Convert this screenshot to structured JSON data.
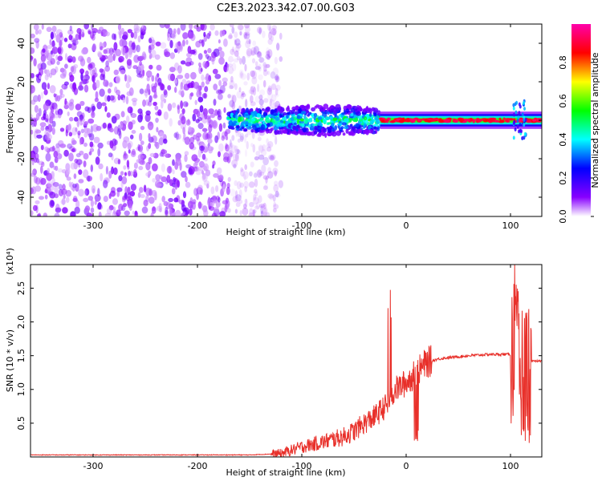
{
  "title": "C2E3.2023.342.07.00.G03",
  "chart_data": [
    {
      "type": "heatmap",
      "xlabel": "Height of straight line (km)",
      "ylabel": "Frequency (Hz)",
      "xlim": [
        -360,
        130
      ],
      "ylim": [
        -50,
        50
      ],
      "x_ticks": [
        -300,
        -200,
        -100,
        0,
        100
      ],
      "y_ticks": [
        -40,
        -20,
        0,
        20,
        40
      ],
      "x_tick_labels": [
        "-300",
        "-200",
        "-100",
        "0",
        "100"
      ],
      "y_tick_labels": [
        "-40",
        "-20",
        "0",
        "20",
        "40"
      ],
      "colorbar": {
        "label": "Normalized spectral amplitude",
        "range": [
          0,
          1
        ],
        "ticks": [
          0.0,
          0.2,
          0.4,
          0.6,
          0.8
        ],
        "tick_labels": [
          "0.0",
          "0.2",
          "0.4",
          "0.6",
          "0.8"
        ],
        "colors": [
          "#ffffff",
          "#8800ff",
          "#0000ff",
          "#00ffff",
          "#00ff00",
          "#ffff00",
          "#ff0000",
          "#ff00aa"
        ]
      },
      "regions": [
        {
          "name": "broadband noise",
          "x": [
            -360,
            -140
          ],
          "y": [
            -50,
            50
          ],
          "amplitude": 0.15
        },
        {
          "name": "signal band",
          "x": [
            -170,
            -25
          ],
          "y": [
            -8,
            8
          ],
          "amplitude": 0.45
        },
        {
          "name": "narrow signal",
          "x": [
            -25,
            130
          ],
          "y": [
            -2,
            2
          ],
          "amplitude": 0.85
        }
      ],
      "grid": false
    },
    {
      "type": "line",
      "xlabel": "Height of straight line (km)",
      "ylabel": "SNR (10 * v/v)",
      "scale_note": "(x10⁴)",
      "xlim": [
        -360,
        130
      ],
      "ylim": [
        0,
        2.85
      ],
      "x_ticks": [
        -300,
        -200,
        -100,
        0,
        100
      ],
      "y_ticks": [
        0.5,
        1.0,
        1.5,
        2.0,
        2.5
      ],
      "x_tick_labels": [
        "-300",
        "-200",
        "-100",
        "0",
        "100"
      ],
      "y_tick_labels": [
        "0.5",
        "1.0",
        "1.5",
        "2.0",
        "2.5"
      ],
      "color": "#e8302a",
      "grid": false,
      "series": [
        {
          "values_x": [
            -360,
            -300,
            -250,
            -200,
            -150,
            -120,
            -100,
            -80,
            -60,
            -50,
            -40,
            -30,
            -20,
            -15,
            -10,
            0,
            10,
            20,
            30,
            40,
            60,
            80,
            100,
            105,
            110,
            115,
            120,
            130
          ],
          "values_y": [
            0.03,
            0.03,
            0.03,
            0.03,
            0.03,
            0.05,
            0.15,
            0.22,
            0.3,
            0.38,
            0.5,
            0.6,
            0.75,
            0.9,
            1.0,
            1.1,
            1.25,
            1.4,
            1.45,
            1.47,
            1.5,
            1.52,
            1.52,
            1.4,
            1.2,
            1.35,
            1.42,
            1.42
          ]
        }
      ]
    }
  ]
}
